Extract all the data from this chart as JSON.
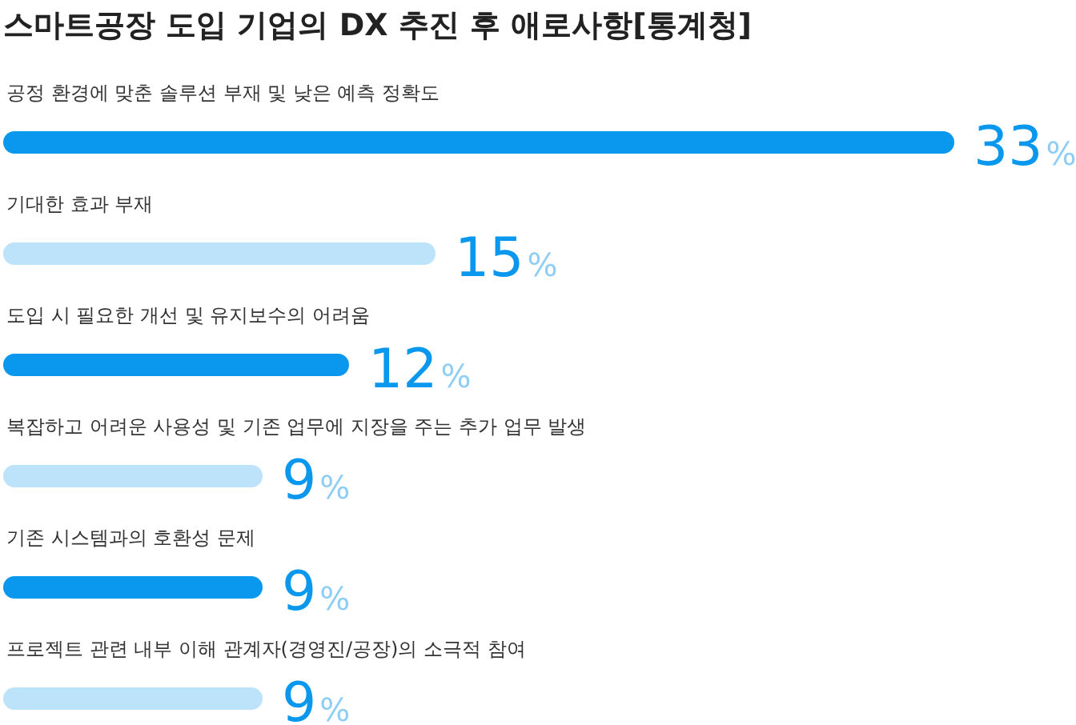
{
  "chart_data": {
    "type": "bar",
    "orientation": "horizontal",
    "title": "스마트공장 도입 기업의 DX 추진 후 애로사항[통계청]",
    "categories": [
      "공정 환경에 맞춘 솔루션 부재 및 낮은 예측 정확도",
      "기대한 효과 부재",
      "도입 시 필요한 개선 및 유지보수의 어려움",
      "복잡하고 어려운 사용성 및 기존 업무에 지장을 주는 추가 업무 발생",
      "기존 시스템과의 호환성 문제",
      "프로젝트 관련 내부 이해 관계자(경영진/공장)의 소극적 참여"
    ],
    "values": [
      33,
      15,
      12,
      9,
      9,
      9
    ],
    "colors": [
      "#0a98ee",
      "#bde3fb",
      "#0a98ee",
      "#bde3fb",
      "#0a98ee",
      "#bde3fb"
    ],
    "value_labels": [
      "33%",
      "15%",
      "12%",
      "9%",
      "9%",
      "9%"
    ]
  }
}
